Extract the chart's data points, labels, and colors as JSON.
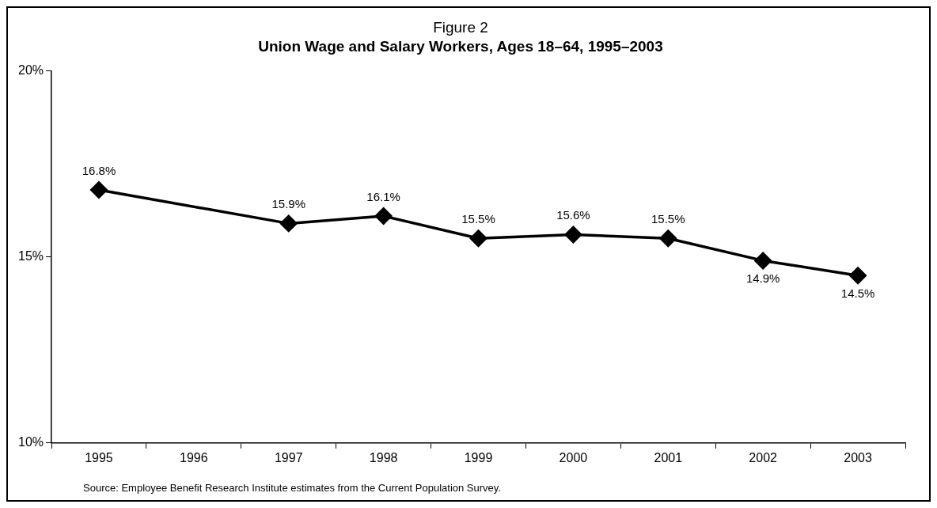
{
  "chart_data": {
    "type": "line",
    "title": "Figure 2",
    "subtitle": "Union Wage and Salary Workers, Ages 18–64, 1995–2003",
    "categories": [
      "1995",
      "1996",
      "1997",
      "1998",
      "1999",
      "2000",
      "2001",
      "2002",
      "2003"
    ],
    "series": [
      {
        "color": "#000000",
        "values": [
          16.8,
          null,
          15.9,
          16.1,
          15.5,
          15.6,
          15.5,
          14.9,
          14.5
        ],
        "value_labels": [
          "16.8%",
          null,
          "15.9%",
          "16.1%",
          "15.5%",
          "15.6%",
          "15.5%",
          "14.9%",
          "14.5%"
        ]
      }
    ],
    "ylim": [
      10,
      20
    ],
    "yticks": [
      {
        "value": 10,
        "label": "10%"
      },
      {
        "value": 15,
        "label": "15%"
      },
      {
        "value": 20,
        "label": "20%"
      }
    ],
    "grid": false,
    "legend": false,
    "marker": "diamond",
    "line_style": "solid",
    "annotations": [
      "Source: Employee Benefit Research Institute estimates from the Current Population Survey."
    ]
  }
}
